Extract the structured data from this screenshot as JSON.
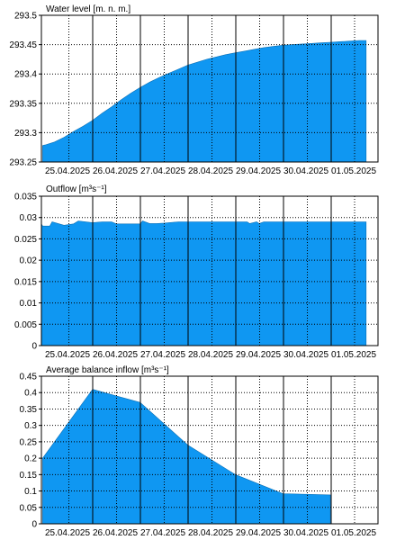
{
  "chart_data": [
    {
      "type": "area",
      "title": "Water level [m. n. m.]",
      "xlabels": [
        "25.04.2025",
        "26.04.2025",
        "27.04.2025",
        "28.04.2025",
        "29.04.2025",
        "30.04.2025",
        "01.05.2025"
      ],
      "yticks": [
        "293.25",
        "293.3",
        "293.35",
        "293.4",
        "293.45",
        "293.5"
      ],
      "ylim": [
        293.25,
        293.5
      ],
      "grid": true,
      "color": "#0f97f2",
      "series": [
        {
          "x": [
            -0.05,
            0.0,
            0.2,
            0.4,
            0.6,
            0.8,
            1.0,
            1.2,
            1.4,
            1.6,
            1.8,
            2.0,
            2.2,
            2.4,
            2.6,
            2.8,
            3.0,
            3.2,
            3.4,
            3.6,
            3.8,
            4.0,
            4.2,
            4.4,
            4.6,
            4.8,
            5.0,
            5.2,
            5.4,
            5.6,
            5.8,
            6.0,
            6.2,
            6.4,
            6.6,
            6.75
          ],
          "y": [
            293.278,
            293.279,
            293.284,
            293.292,
            293.302,
            293.311,
            293.321,
            293.333,
            293.344,
            293.356,
            293.367,
            293.377,
            293.386,
            293.394,
            293.401,
            293.408,
            293.415,
            293.42,
            293.425,
            293.429,
            293.433,
            293.436,
            293.439,
            293.442,
            293.445,
            293.447,
            293.449,
            293.45,
            293.451,
            293.452,
            293.453,
            293.454,
            293.455,
            293.456,
            293.457,
            293.457
          ]
        }
      ]
    },
    {
      "type": "area",
      "title": "Outflow [m³s⁻¹]",
      "xlabels": [
        "25.04.2025",
        "26.04.2025",
        "27.04.2025",
        "28.04.2025",
        "29.04.2025",
        "30.04.2025",
        "01.05.2025"
      ],
      "yticks": [
        "0",
        "0.005",
        "0.01",
        "0.015",
        "0.02",
        "0.025",
        "0.03",
        "0.035"
      ],
      "ylim": [
        0,
        0.035
      ],
      "grid": true,
      "color": "#0f97f2",
      "series": [
        {
          "x": [
            -0.15,
            -0.12,
            -0.05,
            0.1,
            0.15,
            0.3,
            0.4,
            0.6,
            0.7,
            1.0,
            1.2,
            1.4,
            1.5,
            1.7,
            1.8,
            2.0,
            2.05,
            2.2,
            2.35,
            2.5,
            2.8,
            3.0,
            3.5,
            4.0,
            4.25,
            4.3,
            4.45,
            4.5,
            4.6,
            4.7,
            4.8,
            5.0,
            5.5,
            6.0,
            6.5,
            6.75
          ],
          "y": [
            0.0275,
            0.0285,
            0.028,
            0.028,
            0.029,
            0.0285,
            0.0282,
            0.0285,
            0.0292,
            0.0288,
            0.029,
            0.029,
            0.0285,
            0.0285,
            0.0285,
            0.0285,
            0.0292,
            0.0286,
            0.0286,
            0.0287,
            0.029,
            0.029,
            0.029,
            0.029,
            0.029,
            0.0286,
            0.029,
            0.0286,
            0.029,
            0.029,
            0.029,
            0.029,
            0.029,
            0.029,
            0.029,
            0.029
          ]
        }
      ]
    },
    {
      "type": "area",
      "title": "Average balance inflow  [m³s⁻¹]",
      "xlabels": [
        "25.04.2025",
        "26.04.2025",
        "27.04.2025",
        "28.04.2025",
        "29.04.2025",
        "30.04.2025",
        "01.05.2025"
      ],
      "yticks": [
        "0",
        "0.05",
        "0.1",
        "0.15",
        "0.2",
        "0.25",
        "0.3",
        "0.35",
        "0.4",
        "0.45"
      ],
      "ylim": [
        0,
        0.45
      ],
      "grid": true,
      "color": "#0f97f2",
      "series": [
        {
          "x": [
            -0.05,
            1.0,
            2.0,
            3.0,
            4.0,
            5.0,
            6.0
          ],
          "y": [
            0.2,
            0.41,
            0.37,
            0.24,
            0.15,
            0.092,
            0.088
          ]
        }
      ]
    }
  ]
}
